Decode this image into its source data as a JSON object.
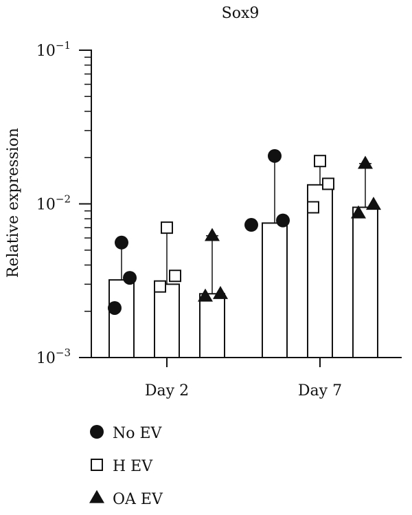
{
  "chart_data": {
    "type": "bar",
    "title": "Sox9",
    "ylabel": "Relative expression",
    "xlabel": "",
    "y_scale": "log",
    "ylim": [
      0.001,
      0.1
    ],
    "y_ticks": [
      {
        "value": 0.1,
        "base": "10",
        "exp": "−1"
      },
      {
        "value": 0.01,
        "base": "10",
        "exp": "−2"
      },
      {
        "value": 0.001,
        "base": "10",
        "exp": "−3"
      }
    ],
    "categories": [
      "Day 2",
      "Day 7"
    ],
    "grid": false,
    "legend_position": "bottom-left",
    "series": [
      {
        "name": "No EV",
        "marker": "circle",
        "bar_values": [
          0.0032,
          0.0075
        ],
        "error_upper": [
          0.0056,
          0.0205
        ],
        "points": [
          [
            0.0056,
            0.0033,
            0.0021
          ],
          [
            0.0205,
            0.0078,
            0.0073
          ]
        ]
      },
      {
        "name": "H EV",
        "marker": "square-open",
        "bar_values": [
          0.003,
          0.0133
        ],
        "error_upper": [
          0.007,
          0.019
        ],
        "points": [
          [
            0.007,
            0.0034,
            0.0029
          ],
          [
            0.019,
            0.0135,
            0.0095
          ]
        ]
      },
      {
        "name": "OA EV",
        "marker": "triangle",
        "bar_values": [
          0.0026,
          0.0095
        ],
        "error_upper": [
          0.0062,
          0.0183
        ],
        "points": [
          [
            0.0062,
            0.0026,
            0.0025
          ],
          [
            0.0183,
            0.0099,
            0.0087
          ]
        ]
      }
    ]
  },
  "colors": {
    "ink": "#111111",
    "bar_fill": "#ffffff"
  }
}
